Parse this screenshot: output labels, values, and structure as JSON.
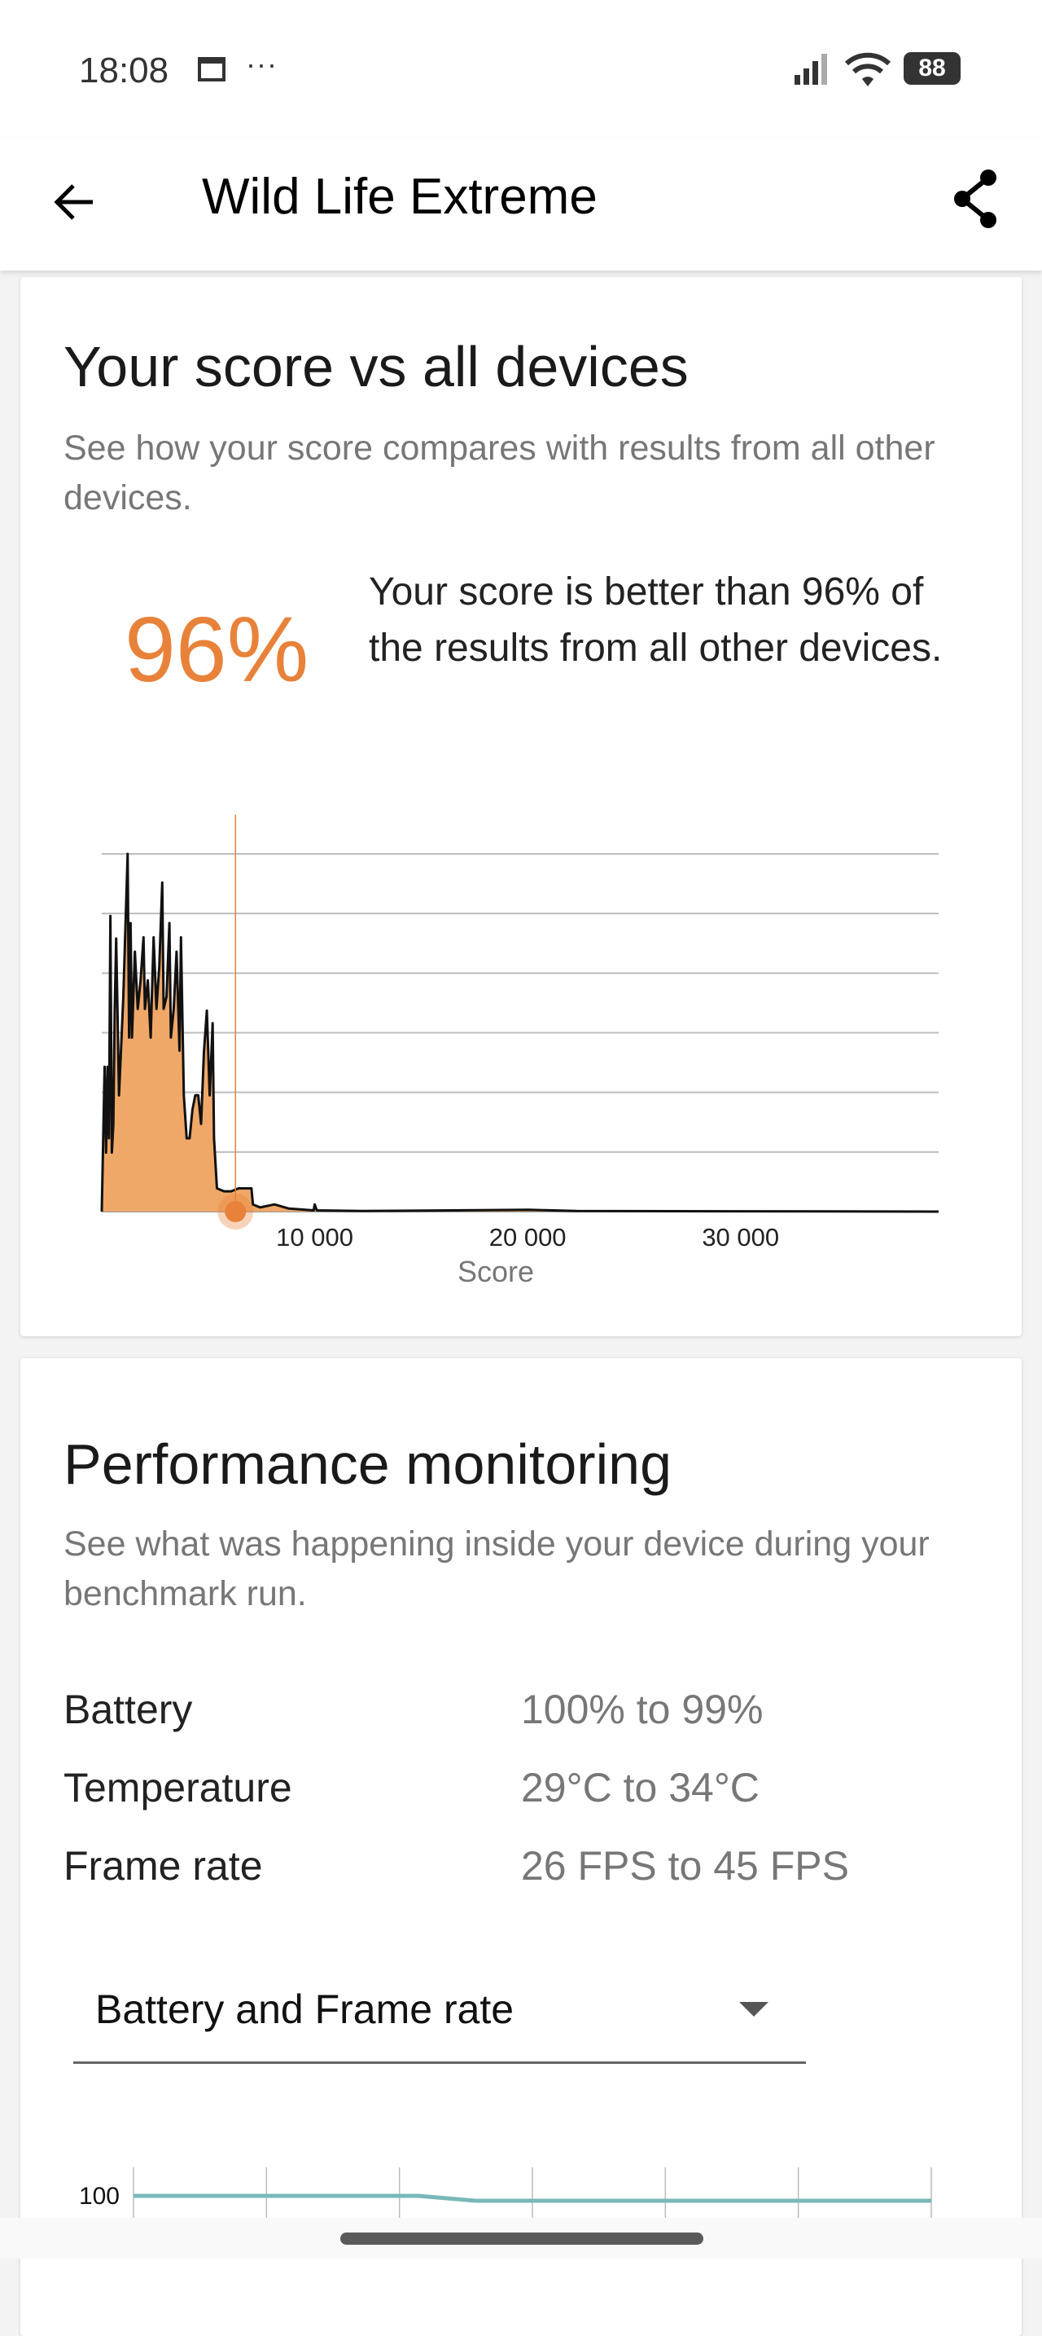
{
  "status_bar": {
    "time": "18:08",
    "battery": "88",
    "icons": [
      "calendar-notification-icon",
      "more-dots-icon",
      "signal-icon",
      "wifi-icon",
      "battery-icon"
    ],
    "more": "···"
  },
  "app_bar": {
    "title": "Wild Life Extreme",
    "back_icon": "arrow-left-icon",
    "share_icon": "share-icon"
  },
  "score_card": {
    "title": "Your score vs all devices",
    "subtitle": "See how your score compares with results from all other devices.",
    "percentile": "96%",
    "description": "Your score is better than 96% of the results from all other devices.",
    "accent_color": "#e8823a"
  },
  "chart_data": [
    {
      "type": "area",
      "xlabel": "Score",
      "ylabel": "",
      "xlim": [
        0,
        39300
      ],
      "ylim": [
        0,
        6
      ],
      "x_ticks": [
        "10 000",
        "20 000",
        "30 000"
      ],
      "x_tick_values": [
        10000,
        20000,
        30000
      ],
      "grid": true,
      "fill_color": "#f0a868",
      "line_color": "#111111",
      "marker": {
        "score": 6280,
        "color": "#e8823a"
      },
      "x": [
        0,
        135,
        203,
        270,
        338,
        406,
        473,
        541,
        608,
        676,
        811,
        1014,
        1217,
        1284,
        1352,
        1420,
        1555,
        1690,
        1825,
        1960,
        2028,
        2163,
        2298,
        2434,
        2569,
        2704,
        2839,
        2907,
        3042,
        3177,
        3245,
        3380,
        3515,
        3650,
        3718,
        3853,
        3988,
        4124,
        4259,
        4394,
        4529,
        4664,
        4799,
        4934,
        5069,
        5205,
        5272,
        5408,
        5746,
        6084,
        6422,
        6895,
        7030,
        7098,
        7436,
        8112,
        8788,
        9950,
        10000,
        10100,
        12200,
        20000,
        22300,
        39300
      ],
      "values": [
        0,
        2.43,
        0.99,
        2.43,
        1.23,
        4.96,
        0.99,
        1.46,
        3.37,
        4.58,
        1.95,
        3.61,
        6.0,
        2.92,
        4.84,
        2.92,
        4.36,
        3.4,
        3.88,
        4.6,
        3.4,
        3.88,
        2.92,
        4.6,
        3.4,
        4.12,
        5.52,
        3.4,
        3.61,
        4.84,
        2.92,
        3.4,
        4.36,
        2.7,
        4.6,
        1.95,
        1.23,
        1.23,
        1.71,
        1.95,
        1.95,
        1.47,
        2.67,
        3.37,
        1.95,
        3.16,
        1.23,
        0.39,
        0.34,
        0.34,
        0.39,
        0.39,
        0.39,
        0.12,
        0.07,
        0.12,
        0.05,
        0.02,
        0.12,
        0.02,
        0.01,
        0.03,
        0.01,
        0
      ]
    },
    {
      "type": "line",
      "y_ticks": [
        "100"
      ],
      "line_color": "#79b8b8",
      "grid": true,
      "series": [
        {
          "values": [
            100,
            100,
            100,
            100,
            100,
            100,
            99,
            99,
            99,
            99,
            99,
            99,
            99,
            99,
            99
          ]
        }
      ]
    }
  ],
  "perf_card": {
    "title": "Performance monitoring",
    "subtitle": "See what was happening inside your device during your benchmark run.",
    "rows": [
      {
        "label": "Battery",
        "value": "100% to 99%"
      },
      {
        "label": "Temperature",
        "value": "29°C to 34°C"
      },
      {
        "label": "Frame rate",
        "value": "26 FPS to 45 FPS"
      }
    ],
    "dropdown": {
      "selected": "Battery and Frame rate"
    }
  }
}
